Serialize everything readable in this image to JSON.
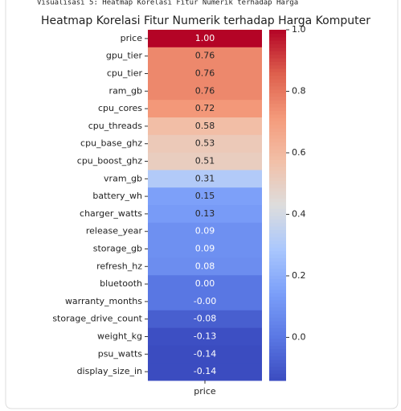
{
  "header": {
    "text": "Visualisasi 5: Heatmap Korelasi Fitur Numerik terhadap Harga"
  },
  "chart_data": {
    "type": "heatmap",
    "title": "Heatmap Korelasi Fitur Numerik terhadap Harga Komputer",
    "columns": [
      "price"
    ],
    "categories": [
      "price",
      "gpu_tier",
      "cpu_tier",
      "ram_gb",
      "cpu_cores",
      "cpu_threads",
      "cpu_base_ghz",
      "cpu_boost_ghz",
      "vram_gb",
      "battery_wh",
      "charger_watts",
      "release_year",
      "storage_gb",
      "refresh_hz",
      "bluetooth",
      "warranty_months",
      "storage_drive_count",
      "weight_kg",
      "psu_watts",
      "display_size_in"
    ],
    "values": [
      1.0,
      0.76,
      0.76,
      0.76,
      0.72,
      0.58,
      0.53,
      0.51,
      0.31,
      0.15,
      0.13,
      0.09,
      0.09,
      0.08,
      0.0,
      -0.001,
      -0.08,
      -0.13,
      -0.14,
      -0.14
    ],
    "value_labels": [
      "1.00",
      "0.76",
      "0.76",
      "0.76",
      "0.72",
      "0.58",
      "0.53",
      "0.51",
      "0.31",
      "0.15",
      "0.13",
      "0.09",
      "0.09",
      "0.08",
      "0.00",
      "-0.00",
      "-0.08",
      "-0.13",
      "-0.14",
      "-0.14"
    ],
    "colormap": "coolwarm",
    "clim": [
      -0.14,
      1.0
    ],
    "cticks": [
      {
        "value": 0,
        "label": "0.0"
      },
      {
        "value": 0.2,
        "label": "0.2"
      },
      {
        "value": 0.4,
        "label": "0.4"
      },
      {
        "value": 0.6,
        "label": "0.6"
      },
      {
        "value": 0.8,
        "label": "0.8"
      },
      {
        "value": 1.0,
        "label": "1.0"
      }
    ]
  }
}
